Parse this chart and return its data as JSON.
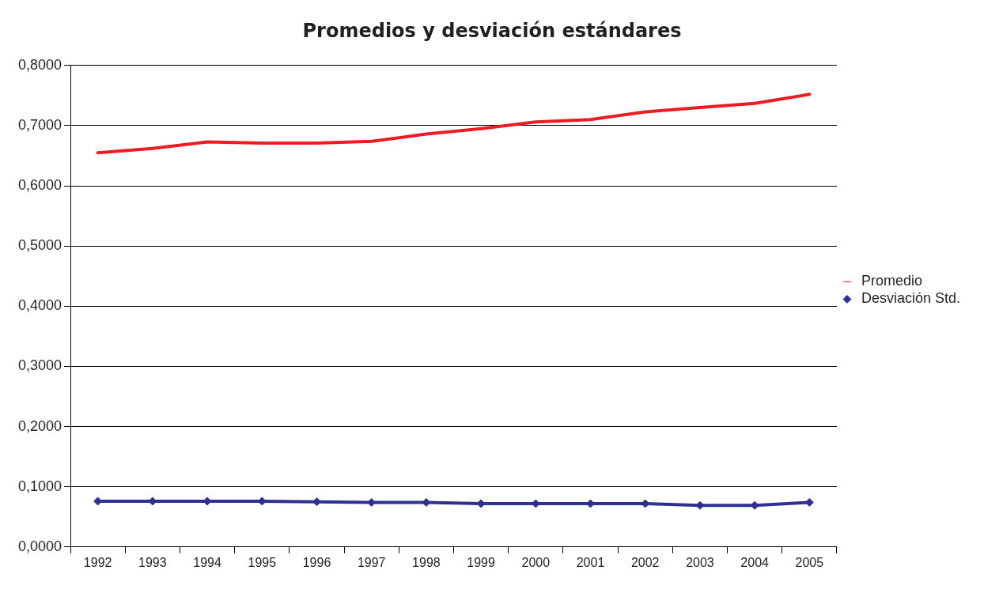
{
  "chart_data": {
    "type": "line",
    "title": "Promedios y desviación estándares",
    "categories": [
      "1992",
      "1993",
      "1994",
      "1995",
      "1996",
      "1997",
      "1998",
      "1999",
      "2000",
      "2001",
      "2002",
      "2003",
      "2004",
      "2005"
    ],
    "series": [
      {
        "name": "Promedio",
        "color": "#ed1c24",
        "marker": "none",
        "values": [
          0.655,
          0.662,
          0.673,
          0.671,
          0.671,
          0.674,
          0.686,
          0.695,
          0.706,
          0.71,
          0.723,
          0.73,
          0.737,
          0.752
        ]
      },
      {
        "name": "Desviación Std.",
        "color": "#2e3192",
        "marker": "diamond",
        "values": [
          0.076,
          0.076,
          0.076,
          0.076,
          0.075,
          0.074,
          0.074,
          0.072,
          0.072,
          0.072,
          0.072,
          0.069,
          0.069,
          0.074
        ]
      }
    ],
    "ylim": [
      0,
      0.8
    ],
    "yticks": [
      {
        "value": 0,
        "label": "0,0000"
      },
      {
        "value": 0.1,
        "label": "0,1000"
      },
      {
        "value": 0.2,
        "label": "0,2000"
      },
      {
        "value": 0.3,
        "label": "0,3000"
      },
      {
        "value": 0.4,
        "label": "0,4000"
      },
      {
        "value": 0.5,
        "label": "0,5000"
      },
      {
        "value": 0.6,
        "label": "0,6000"
      },
      {
        "value": 0.7,
        "label": "0,7000"
      },
      {
        "value": 0.8,
        "label": "0,8000"
      }
    ],
    "grid": "y",
    "legend": "right"
  }
}
